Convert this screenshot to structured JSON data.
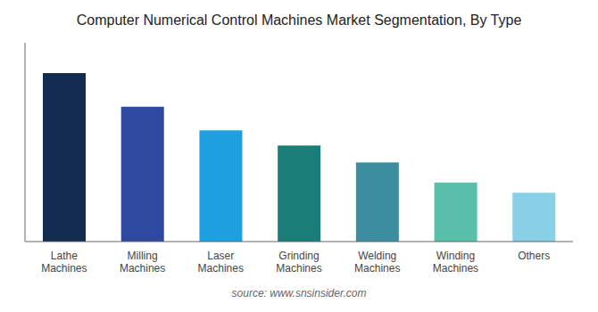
{
  "chart_data": {
    "type": "bar",
    "title": "Computer Numerical Control Machines Market Segmentation, By Type",
    "categories": [
      "Lathe\nMachines",
      "Milling\nMachines",
      "Laser\nMachines",
      "Grinding\nMachines",
      "Welding\nMachines",
      "Winding\nMachines",
      "Others"
    ],
    "values": [
      100,
      80,
      66,
      57,
      47,
      35,
      29
    ],
    "colors": [
      "#122b4f",
      "#2f49a0",
      "#1ea0e0",
      "#1a7d78",
      "#3d8da0",
      "#5abfaa",
      "#87d0e5"
    ],
    "ylim": [
      0,
      118
    ],
    "grid": false,
    "tick_labels": "x",
    "annotations": [
      "source: www.snsinsider.com"
    ]
  }
}
